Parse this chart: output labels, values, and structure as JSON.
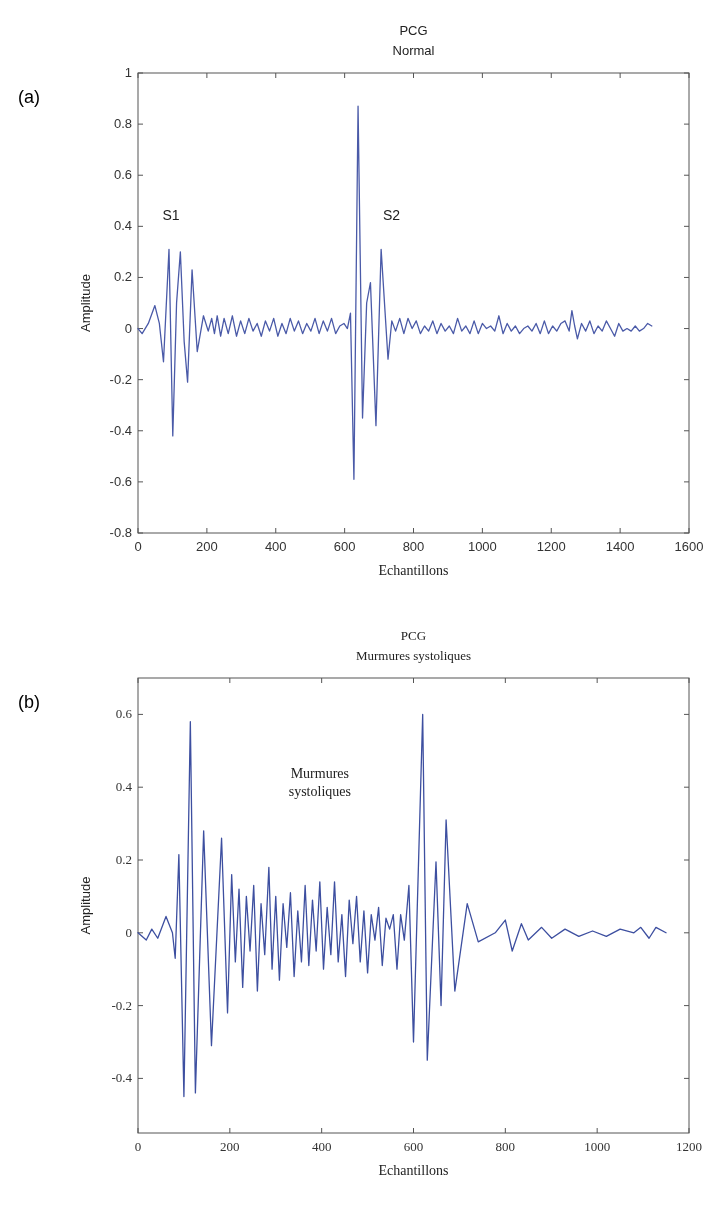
{
  "chart_data": [
    {
      "type": "line",
      "title": "PCG",
      "subtitle": "Normal",
      "xlabel": "Echantillons",
      "ylabel": "Amplitude",
      "xlim": [
        0,
        1600
      ],
      "ylim": [
        -0.8,
        1
      ],
      "xticks": [
        0,
        200,
        400,
        600,
        800,
        1000,
        1200,
        1400,
        1600
      ],
      "yticks": [
        -0.8,
        -0.6,
        -0.4,
        -0.2,
        0,
        0.2,
        0.4,
        0.6,
        0.8,
        1
      ],
      "grid": false,
      "annotations": [
        "(a)",
        "S1",
        "S2"
      ],
      "series": [
        {
          "color": "#4a5aa8",
          "x": [
            0,
            12,
            30,
            49,
            62,
            74,
            90,
            101,
            112,
            123,
            134,
            144,
            157,
            172,
            190,
            204,
            214,
            222,
            230,
            240,
            250,
            262,
            274,
            286,
            298,
            310,
            322,
            334,
            346,
            358,
            370,
            382,
            394,
            406,
            418,
            430,
            442,
            454,
            466,
            478,
            490,
            502,
            514,
            526,
            538,
            550,
            562,
            574,
            586,
            598,
            608,
            617,
            627,
            639,
            652,
            664,
            675,
            691,
            706,
            726,
            737,
            748,
            760,
            772,
            784,
            796,
            808,
            820,
            832,
            844,
            856,
            868,
            880,
            892,
            904,
            916,
            928,
            940,
            952,
            964,
            976,
            988,
            1000,
            1012,
            1024,
            1036,
            1048,
            1060,
            1072,
            1084,
            1096,
            1108,
            1120,
            1132,
            1144,
            1156,
            1168,
            1180,
            1192,
            1204,
            1216,
            1228,
            1240,
            1252,
            1260,
            1268,
            1276,
            1288,
            1300,
            1312,
            1324,
            1336,
            1348,
            1360,
            1372,
            1384,
            1396,
            1408,
            1420,
            1432,
            1444,
            1456,
            1468,
            1480,
            1492
          ],
          "values": [
            0,
            -0.02,
            0.02,
            0.09,
            0.02,
            -0.13,
            0.31,
            -0.42,
            0.1,
            0.3,
            -0.05,
            -0.21,
            0.23,
            -0.09,
            0.05,
            -0.01,
            0.04,
            -0.02,
            0.05,
            -0.03,
            0.04,
            -0.02,
            0.05,
            -0.03,
            0.03,
            -0.02,
            0.04,
            -0.01,
            0.02,
            -0.03,
            0.03,
            -0.01,
            0.04,
            -0.03,
            0.02,
            -0.02,
            0.04,
            -0.01,
            0.03,
            -0.02,
            0.02,
            -0.01,
            0.04,
            -0.02,
            0.03,
            -0.01,
            0.04,
            -0.02,
            0.01,
            0.02,
            0,
            0.06,
            -0.59,
            0.87,
            -0.35,
            0.1,
            0.18,
            -0.38,
            0.31,
            -0.12,
            0.03,
            -0.01,
            0.04,
            -0.02,
            0.04,
            0,
            0.03,
            -0.02,
            0.01,
            -0.01,
            0.03,
            -0.02,
            0.02,
            -0.01,
            0.01,
            -0.02,
            0.04,
            -0.01,
            0.01,
            -0.02,
            0.03,
            -0.02,
            0.02,
            0,
            0.01,
            -0.01,
            0.05,
            -0.02,
            0.02,
            -0.01,
            0.01,
            -0.02,
            0,
            0.01,
            -0.01,
            0.02,
            -0.02,
            0.03,
            -0.02,
            0.01,
            -0.01,
            0.02,
            0.03,
            -0.01,
            0.07,
            0.01,
            -0.04,
            0.02,
            -0.01,
            0.03,
            -0.02,
            0.01,
            -0.01,
            0.03,
            0,
            -0.03,
            0.02,
            -0.01,
            0,
            -0.01,
            0.01,
            -0.01,
            0,
            0.02,
            0.01
          ]
        }
      ]
    },
    {
      "type": "line",
      "title": "PCG",
      "subtitle": "Murmures systoliques",
      "xlabel": "Echantillons",
      "ylabel": "Amplitude",
      "xlim": [
        0,
        1200
      ],
      "ylim": [
        -0.55,
        0.7
      ],
      "xticks": [
        0,
        200,
        400,
        600,
        800,
        1000,
        1200
      ],
      "yticks": [
        -0.4,
        -0.2,
        0,
        0.2,
        0.4,
        0.6
      ],
      "grid": false,
      "annotations": [
        "(b)",
        "Murmures systoliques"
      ],
      "series": [
        {
          "color": "#3d4fa0",
          "x": [
            0,
            18,
            30,
            43,
            61,
            75,
            81,
            89,
            100,
            114,
            125,
            143,
            160,
            182,
            195,
            204,
            212,
            220,
            228,
            236,
            244,
            252,
            260,
            268,
            276,
            285,
            292,
            300,
            308,
            316,
            324,
            332,
            340,
            348,
            356,
            364,
            372,
            380,
            388,
            396,
            404,
            412,
            420,
            428,
            436,
            444,
            452,
            460,
            468,
            476,
            484,
            492,
            500,
            508,
            516,
            524,
            532,
            540,
            548,
            556,
            564,
            572,
            580,
            590,
            600,
            620,
            630,
            649,
            660,
            671,
            690,
            717,
            741,
            778,
            800,
            815,
            835,
            850,
            879,
            901,
            930,
            960,
            990,
            1020,
            1050,
            1080,
            1095,
            1113,
            1128,
            1150
          ],
          "values": [
            0,
            -0.02,
            0.01,
            -0.015,
            0.045,
            0,
            -0.07,
            0.215,
            -0.45,
            0.58,
            -0.44,
            0.28,
            -0.31,
            0.26,
            -0.22,
            0.16,
            -0.08,
            0.12,
            -0.15,
            0.1,
            -0.05,
            0.13,
            -0.16,
            0.08,
            -0.06,
            0.18,
            -0.1,
            0.1,
            -0.13,
            0.08,
            -0.04,
            0.11,
            -0.12,
            0.06,
            -0.08,
            0.13,
            -0.09,
            0.09,
            -0.05,
            0.14,
            -0.1,
            0.07,
            -0.06,
            0.14,
            -0.08,
            0.05,
            -0.12,
            0.09,
            -0.03,
            0.1,
            -0.08,
            0.06,
            -0.11,
            0.05,
            -0.02,
            0.07,
            -0.09,
            0.04,
            0.01,
            0.05,
            -0.1,
            0.05,
            -0.02,
            0.13,
            -0.3,
            0.6,
            -0.35,
            0.195,
            -0.2,
            0.31,
            -0.16,
            0.08,
            -0.025,
            0,
            0.035,
            -0.05,
            0.025,
            -0.02,
            0.015,
            -0.015,
            0.01,
            -0.01,
            0.005,
            -0.01,
            0.01,
            0,
            0.015,
            -0.015,
            0.015,
            0
          ]
        }
      ]
    }
  ]
}
